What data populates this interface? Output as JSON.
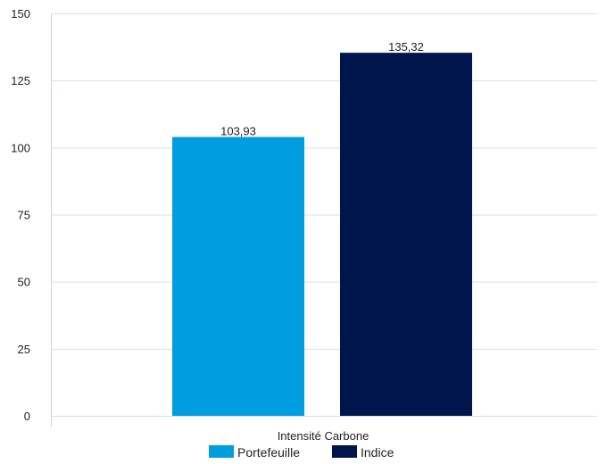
{
  "chart_data": {
    "type": "bar",
    "categories": [
      "Intensité Carbone"
    ],
    "series": [
      {
        "name": "Portefeuille",
        "values": [
          103.93
        ],
        "label": "103,93",
        "color": "#009ee0"
      },
      {
        "name": "Indice",
        "values": [
          135.32
        ],
        "label": "135,32",
        "color": "#00154b"
      }
    ],
    "yticks": [
      0,
      25,
      50,
      75,
      100,
      125,
      150
    ],
    "ylim": [
      0,
      150
    ],
    "grid": true,
    "legend": "bottom",
    "title": "",
    "xlabel": "",
    "ylabel": ""
  }
}
